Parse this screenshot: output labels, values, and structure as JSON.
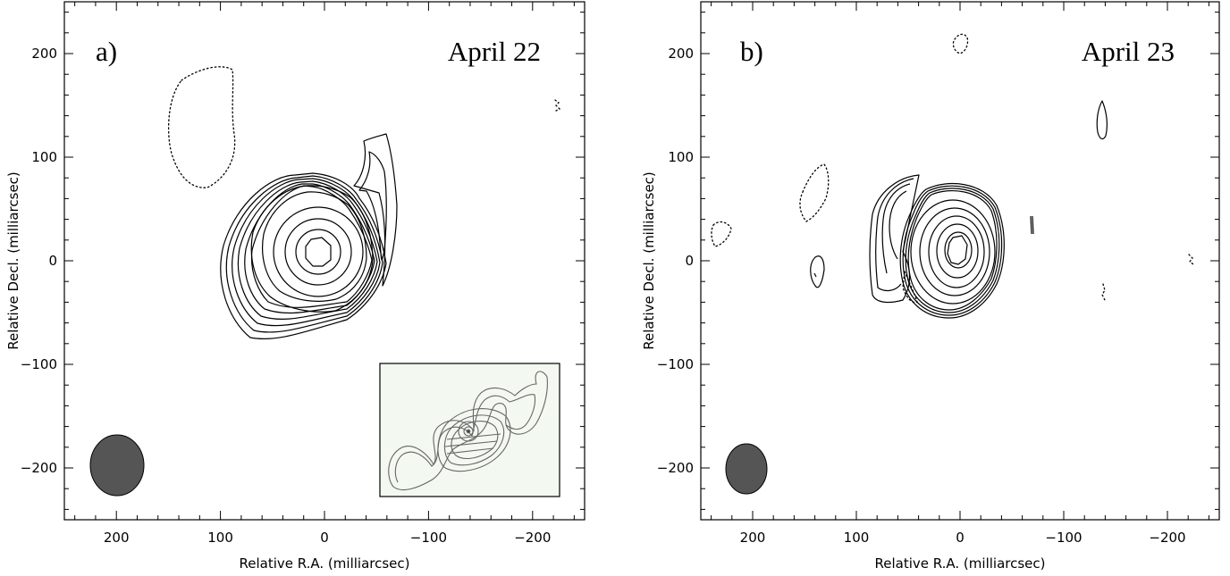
{
  "colors": {
    "beam_fill": "#555555",
    "inset_background": "#f3f8f1",
    "line": "#000000"
  },
  "chart_data": [
    {
      "type": "contour",
      "panel_label": "a)",
      "date_label": "April 22",
      "xlabel": "Relative R.A. (milliarcsec)",
      "ylabel": "Relative Decl. (milliarcsec)",
      "xlim": [
        250,
        -250
      ],
      "ylim": [
        -250,
        250
      ],
      "xticks": [
        200,
        100,
        0,
        -100,
        -200
      ],
      "yticks": [
        200,
        100,
        0,
        -100,
        -200
      ],
      "peak": [
        10,
        8
      ],
      "beam": {
        "center": [
          200,
          -198
        ],
        "ra_width": 50,
        "dec_height": 57
      },
      "inset": true
    },
    {
      "type": "contour",
      "panel_label": "b)",
      "date_label": "April 23",
      "xlabel": "Relative R.A. (milliarcsec)",
      "ylabel": "Relative Decl. (milliarcsec)",
      "xlim": [
        250,
        -250
      ],
      "ylim": [
        -250,
        250
      ],
      "xticks": [
        200,
        100,
        0,
        -100,
        -200
      ],
      "yticks": [
        200,
        100,
        0,
        -100,
        -200
      ],
      "peak": [
        0,
        12
      ],
      "beam": {
        "center": [
          200,
          -202
        ],
        "ra_width": 38,
        "dec_height": 49
      },
      "inset": false
    }
  ]
}
